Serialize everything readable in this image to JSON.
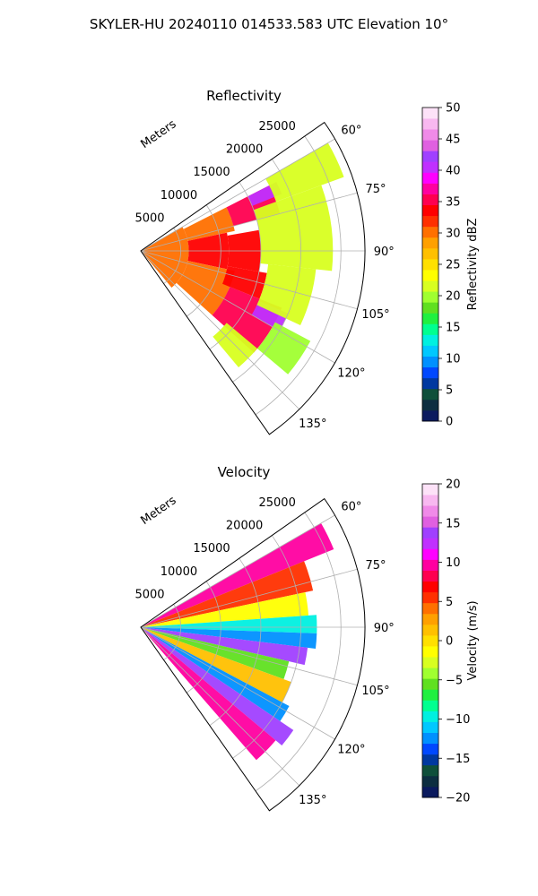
{
  "figure": {
    "title": "SKYLER-HU  20240110  014533.583 UTC Elevation 10°"
  },
  "chart_data": [
    {
      "type": "heatmap",
      "projection": "polar-sector",
      "title": "Reflectivity",
      "radial_label": "Meters",
      "radial_ticks": [
        5000,
        10000,
        15000,
        20000,
        25000
      ],
      "radial_tick_labels": [
        "5000",
        "10000",
        "15000",
        "20000",
        "25000"
      ],
      "rmax": 28000,
      "theta_range_deg": [
        55,
        145
      ],
      "theta_ticks_deg": [
        60,
        75,
        90,
        105,
        120,
        135
      ],
      "theta_tick_labels": [
        "60°",
        "75°",
        "90°",
        "105°",
        "120°",
        "135°"
      ],
      "grid": true,
      "colorbar": {
        "label": "Reflectivity dBZ",
        "min": 0,
        "max": 50,
        "ticks": [
          0,
          5,
          10,
          15,
          20,
          25,
          30,
          35,
          40,
          45,
          50
        ],
        "tick_labels": [
          "0",
          "5",
          "10",
          "15",
          "20",
          "25",
          "30",
          "35",
          "40",
          "45",
          "50"
        ],
        "colors": [
          "#0b1a5e",
          "#0d2e40",
          "#0f4f3a",
          "#0038a0",
          "#0048ff",
          "#0090ff",
          "#00c8ff",
          "#00f0e0",
          "#00ff90",
          "#20f040",
          "#60e020",
          "#a0ff30",
          "#d8ff20",
          "#ffff00",
          "#ffe000",
          "#ffc000",
          "#ffa000",
          "#ff7000",
          "#ff3000",
          "#ff0000",
          "#ff0050",
          "#ff00a0",
          "#ff00ff",
          "#c030ff",
          "#a040ff",
          "#e060e0",
          "#f08ae8",
          "#f8b8f0",
          "#fde2f8"
        ]
      },
      "echo_regions": [
        {
          "az_start": 60,
          "az_end": 140,
          "r_start": 0,
          "r_end": 6000,
          "value": 31
        },
        {
          "az_start": 63,
          "az_end": 78,
          "r_start": 6000,
          "r_end": 12000,
          "value": 30
        },
        {
          "az_start": 78,
          "az_end": 102,
          "r_start": 6000,
          "r_end": 11000,
          "value": 33
        },
        {
          "az_start": 102,
          "az_end": 132,
          "r_start": 6000,
          "r_end": 12000,
          "value": 31
        },
        {
          "az_start": 63,
          "az_end": 75,
          "r_start": 12000,
          "r_end": 18000,
          "value": 35
        },
        {
          "az_start": 80,
          "az_end": 100,
          "r_start": 11000,
          "r_end": 15000,
          "value": 34
        },
        {
          "az_start": 100,
          "az_end": 112,
          "r_start": 11000,
          "r_end": 16000,
          "value": 33
        },
        {
          "az_start": 112,
          "az_end": 132,
          "r_start": 12000,
          "r_end": 19000,
          "value": 36
        },
        {
          "az_start": 63,
          "az_end": 68,
          "r_start": 15000,
          "r_end": 19000,
          "value": 40
        },
        {
          "az_start": 113,
          "az_end": 120,
          "r_start": 16000,
          "r_end": 20000,
          "value": 40
        },
        {
          "az_start": 60,
          "az_end": 70,
          "r_start": 18000,
          "r_end": 27000,
          "value": 22
        },
        {
          "az_start": 70,
          "az_end": 96,
          "r_start": 15000,
          "r_end": 24000,
          "value": 22
        },
        {
          "az_start": 96,
          "az_end": 115,
          "r_start": 16000,
          "r_end": 22000,
          "value": 22
        },
        {
          "az_start": 118,
          "az_end": 130,
          "r_start": 19000,
          "r_end": 24000,
          "value": 20
        },
        {
          "az_start": 130,
          "az_end": 140,
          "r_start": 14000,
          "r_end": 19000,
          "value": 22
        }
      ]
    },
    {
      "type": "heatmap",
      "projection": "polar-sector",
      "title": "Velocity",
      "radial_label": "Meters",
      "radial_ticks": [
        5000,
        10000,
        15000,
        20000,
        25000
      ],
      "radial_tick_labels": [
        "5000",
        "10000",
        "15000",
        "20000",
        "25000"
      ],
      "rmax": 28000,
      "theta_range_deg": [
        55,
        145
      ],
      "theta_ticks_deg": [
        60,
        75,
        90,
        105,
        120,
        135
      ],
      "theta_tick_labels": [
        "60°",
        "75°",
        "90°",
        "105°",
        "120°",
        "135°"
      ],
      "grid": true,
      "colorbar": {
        "label": "Velocity (m/s)",
        "min": -20,
        "max": 20,
        "ticks": [
          -20,
          -15,
          -10,
          -5,
          0,
          5,
          10,
          15,
          20
        ],
        "tick_labels": [
          "−20",
          "−15",
          "−10",
          "−5",
          "0",
          "5",
          "10",
          "15",
          "20"
        ],
        "colors": [
          "#0b1a5e",
          "#0d2e40",
          "#0f4f3a",
          "#0038a0",
          "#0048ff",
          "#0090ff",
          "#00c8ff",
          "#00f0e0",
          "#00ff90",
          "#20f040",
          "#60e020",
          "#a0ff30",
          "#d8ff20",
          "#ffff00",
          "#ffe000",
          "#ffc000",
          "#ffa000",
          "#ff7000",
          "#ff3000",
          "#ff0000",
          "#ff0050",
          "#ff00a0",
          "#ff00ff",
          "#c030ff",
          "#a040ff",
          "#e060e0",
          "#f08ae8",
          "#f8b8f0",
          "#fde2f8"
        ]
      },
      "echo_regions": [
        {
          "az_start": 60,
          "az_end": 68,
          "r_start": 0,
          "r_end": 26000,
          "value": 9
        },
        {
          "az_start": 68,
          "az_end": 78,
          "r_start": 0,
          "r_end": 22000,
          "value": 5
        },
        {
          "az_start": 78,
          "az_end": 86,
          "r_start": 0,
          "r_end": 21000,
          "value": -2
        },
        {
          "az_start": 86,
          "az_end": 92,
          "r_start": 0,
          "r_end": 22000,
          "value": -9
        },
        {
          "az_start": 92,
          "az_end": 97,
          "r_start": 0,
          "r_end": 22000,
          "value": -12
        },
        {
          "az_start": 97,
          "az_end": 103,
          "r_start": 0,
          "r_end": 21000,
          "value": 14
        },
        {
          "az_start": 103,
          "az_end": 110,
          "r_start": 0,
          "r_end": 19000,
          "value": -5
        },
        {
          "az_start": 110,
          "az_end": 118,
          "r_start": 0,
          "r_end": 20000,
          "value": 1
        },
        {
          "az_start": 118,
          "az_end": 124,
          "r_start": 0,
          "r_end": 21000,
          "value": -12
        },
        {
          "az_start": 124,
          "az_end": 130,
          "r_start": 0,
          "r_end": 23000,
          "value": 14
        },
        {
          "az_start": 130,
          "az_end": 139,
          "r_start": 0,
          "r_end": 22000,
          "value": 9
        }
      ]
    }
  ]
}
